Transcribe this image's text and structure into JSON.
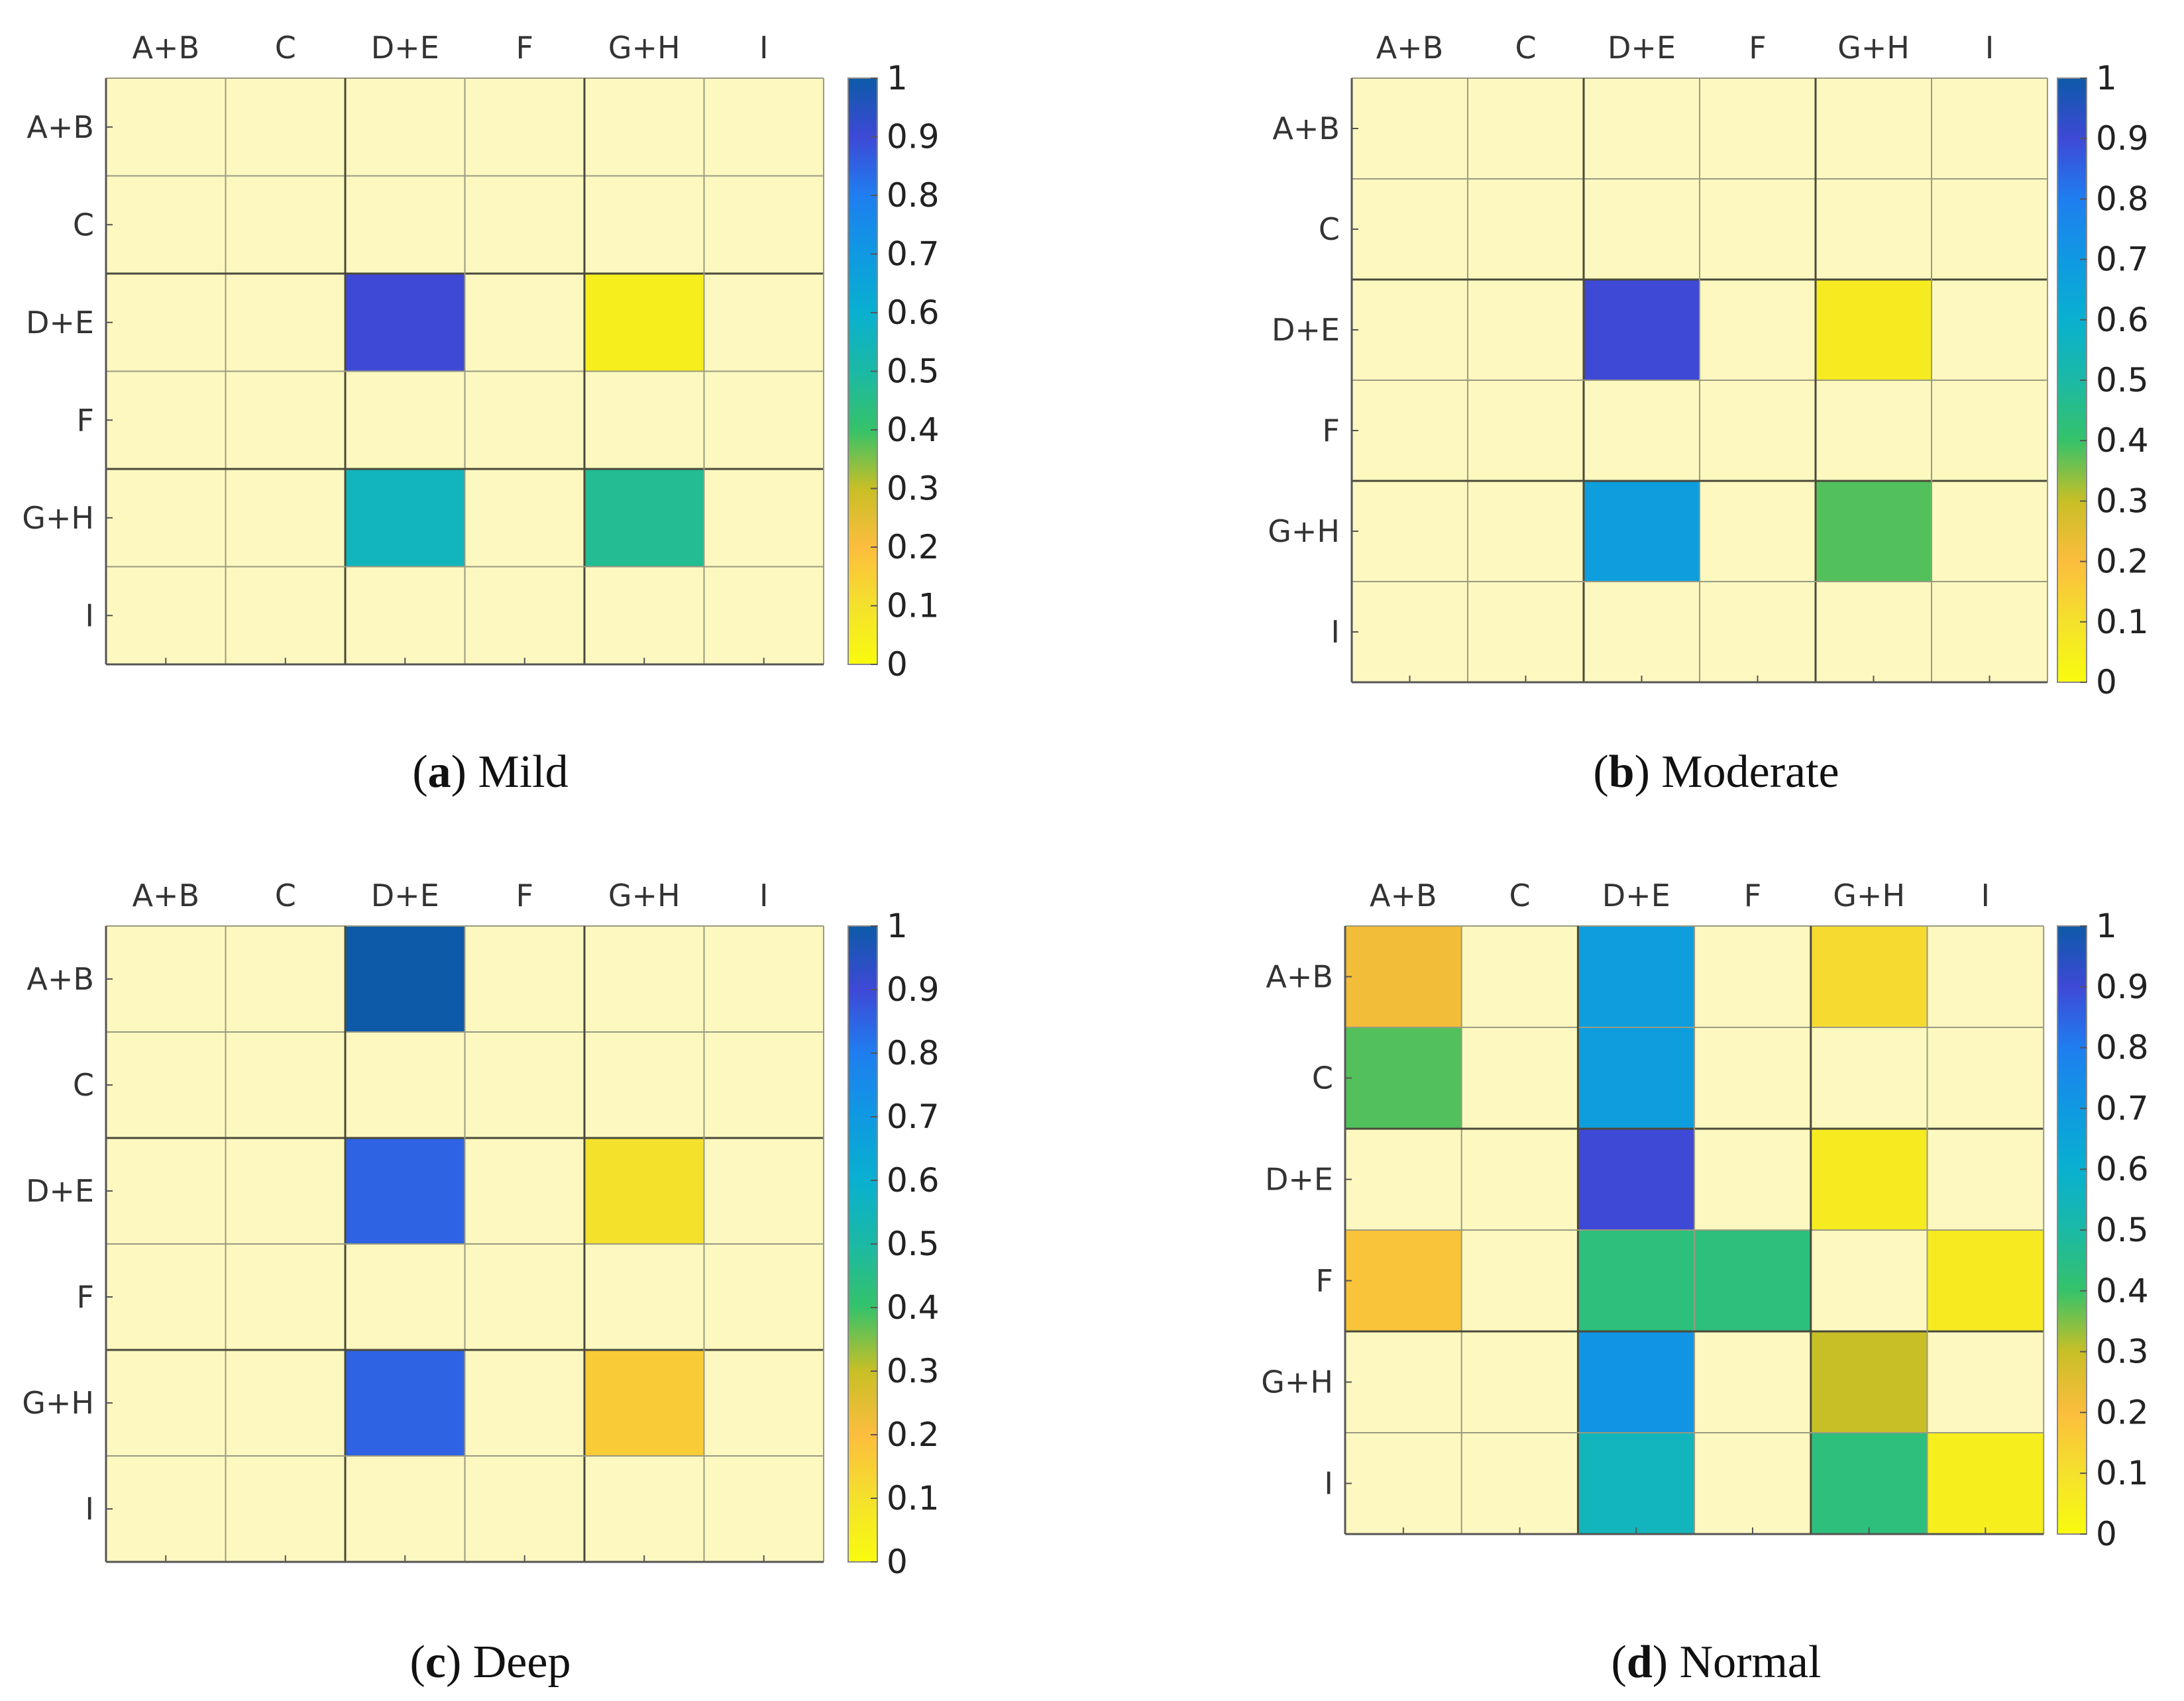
{
  "chart_data": [
    {
      "type": "heatmap",
      "caption_letter": "a",
      "caption_text": "Mild",
      "x_labels": [
        "A+B",
        "C",
        "D+E",
        "F",
        "G+H",
        "I"
      ],
      "y_labels": [
        "A+B",
        "C",
        "D+E",
        "F",
        "G+H",
        "I"
      ],
      "values": [
        [
          0,
          0,
          0,
          0,
          0,
          0
        ],
        [
          0,
          0,
          0,
          0,
          0,
          0
        ],
        [
          0,
          0,
          0.9,
          0,
          0.05,
          0
        ],
        [
          0,
          0,
          0,
          0,
          0,
          0
        ],
        [
          0,
          0,
          0.55,
          0,
          0.47,
          0
        ],
        [
          0,
          0,
          0,
          0,
          0,
          0
        ]
      ],
      "colorbar": {
        "min": 0,
        "max": 1,
        "ticks": [
          "0",
          "0.1",
          "0.2",
          "0.3",
          "0.4",
          "0.5",
          "0.6",
          "0.7",
          "0.8",
          "0.9",
          "1"
        ]
      }
    },
    {
      "type": "heatmap",
      "caption_letter": "b",
      "caption_text": "Moderate",
      "x_labels": [
        "A+B",
        "C",
        "D+E",
        "F",
        "G+H",
        "I"
      ],
      "y_labels": [
        "A+B",
        "C",
        "D+E",
        "F",
        "G+H",
        "I"
      ],
      "values": [
        [
          0,
          0,
          0,
          0,
          0,
          0
        ],
        [
          0,
          0,
          0,
          0,
          0,
          0
        ],
        [
          0,
          0,
          0.9,
          0,
          0.06,
          0
        ],
        [
          0,
          0,
          0,
          0,
          0,
          0
        ],
        [
          0,
          0,
          0.68,
          0,
          0.38,
          0
        ],
        [
          0,
          0,
          0,
          0,
          0,
          0
        ]
      ],
      "colorbar": {
        "min": 0,
        "max": 1,
        "ticks": [
          "0",
          "0.1",
          "0.2",
          "0.3",
          "0.4",
          "0.5",
          "0.6",
          "0.7",
          "0.8",
          "0.9",
          "1"
        ]
      }
    },
    {
      "type": "heatmap",
      "caption_letter": "c",
      "caption_text": "Deep",
      "x_labels": [
        "A+B",
        "C",
        "D+E",
        "F",
        "G+H",
        "I"
      ],
      "y_labels": [
        "A+B",
        "C",
        "D+E",
        "F",
        "G+H",
        "I"
      ],
      "values": [
        [
          0,
          0,
          1.0,
          0,
          0,
          0
        ],
        [
          0,
          0,
          0,
          0,
          0,
          0
        ],
        [
          0,
          0,
          0.85,
          0,
          0.1,
          0
        ],
        [
          0,
          0,
          0,
          0,
          0,
          0
        ],
        [
          0,
          0,
          0.85,
          0,
          0.16,
          0
        ],
        [
          0,
          0,
          0,
          0,
          0,
          0
        ]
      ],
      "colorbar": {
        "min": 0,
        "max": 1,
        "ticks": [
          "0",
          "0.1",
          "0.2",
          "0.3",
          "0.4",
          "0.5",
          "0.6",
          "0.7",
          "0.8",
          "0.9",
          "1"
        ]
      }
    },
    {
      "type": "heatmap",
      "caption_letter": "d",
      "caption_text": "Normal",
      "x_labels": [
        "A+B",
        "C",
        "D+E",
        "F",
        "G+H",
        "I"
      ],
      "y_labels": [
        "A+B",
        "C",
        "D+E",
        "F",
        "G+H",
        "I"
      ],
      "values": [
        [
          0.22,
          0,
          0.68,
          0,
          0.12,
          0
        ],
        [
          0.38,
          0,
          0.68,
          0,
          0,
          0
        ],
        [
          0,
          0,
          0.9,
          0,
          0.06,
          0
        ],
        [
          0.18,
          0,
          0.43,
          0.43,
          0,
          0.06
        ],
        [
          0,
          0,
          0.72,
          0,
          0.3,
          0
        ],
        [
          0,
          0,
          0.55,
          0,
          0.43,
          0.05
        ]
      ],
      "colorbar": {
        "min": 0,
        "max": 1,
        "ticks": [
          "0",
          "0.1",
          "0.2",
          "0.3",
          "0.4",
          "0.5",
          "0.6",
          "0.7",
          "0.8",
          "0.9",
          "1"
        ]
      }
    }
  ]
}
